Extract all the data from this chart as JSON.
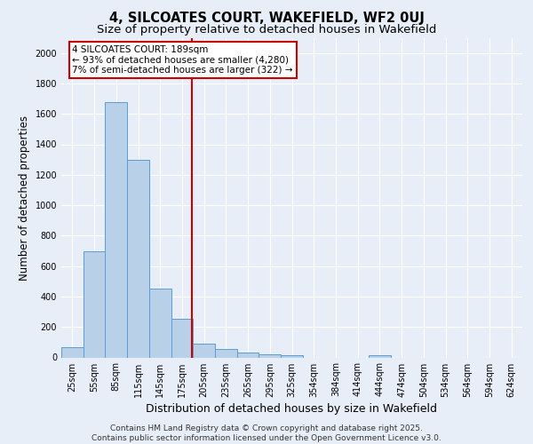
{
  "title_line1": "4, SILCOATES COURT, WAKEFIELD, WF2 0UJ",
  "title_line2": "Size of property relative to detached houses in Wakefield",
  "xlabel": "Distribution of detached houses by size in Wakefield",
  "ylabel": "Number of detached properties",
  "categories": [
    "25sqm",
    "55sqm",
    "85sqm",
    "115sqm",
    "145sqm",
    "175sqm",
    "205sqm",
    "235sqm",
    "265sqm",
    "295sqm",
    "325sqm",
    "354sqm",
    "384sqm",
    "414sqm",
    "444sqm",
    "474sqm",
    "504sqm",
    "534sqm",
    "564sqm",
    "594sqm",
    "624sqm"
  ],
  "values": [
    70,
    700,
    1680,
    1300,
    450,
    255,
    90,
    55,
    30,
    20,
    15,
    0,
    0,
    0,
    15,
    0,
    0,
    0,
    0,
    0,
    0
  ],
  "bar_color": "#b8d0e8",
  "bar_edge_color": "#5b9bd5",
  "vline_color": "#cc0000",
  "annotation_line1": "4 SILCOATES COURT: 189sqm",
  "annotation_line2": "← 93% of detached houses are smaller (4,280)",
  "annotation_line3": "7% of semi-detached houses are larger (322) →",
  "annotation_box_color": "#ffffff",
  "annotation_box_edge": "#cc0000",
  "ylim": [
    0,
    2100
  ],
  "yticks": [
    0,
    200,
    400,
    600,
    800,
    1000,
    1200,
    1400,
    1600,
    1800,
    2000
  ],
  "background_color": "#e8eef7",
  "grid_color": "#ffffff",
  "footer_line1": "Contains HM Land Registry data © Crown copyright and database right 2025.",
  "footer_line2": "Contains public sector information licensed under the Open Government Licence v3.0.",
  "title_fontsize": 10.5,
  "subtitle_fontsize": 9.5,
  "axis_label_fontsize": 8.5,
  "tick_fontsize": 7,
  "annotation_fontsize": 7.5,
  "footer_fontsize": 6.5
}
